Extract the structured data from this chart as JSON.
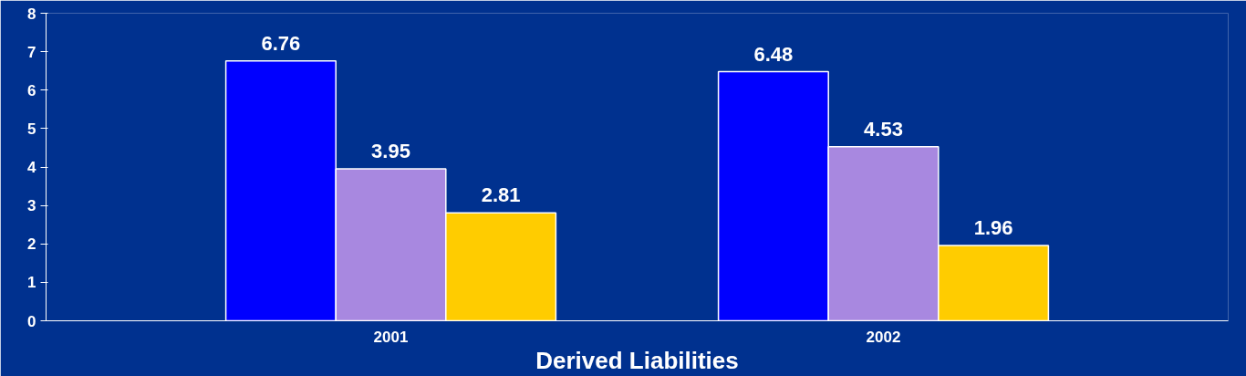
{
  "chart_data": {
    "type": "bar",
    "xlabel": "Derived Liabilities",
    "categories": [
      "2001",
      "2002"
    ],
    "series": [
      {
        "color": "#0000ff",
        "values": [
          6.76,
          6.48
        ]
      },
      {
        "color": "#a888e0",
        "values": [
          3.95,
          4.53
        ]
      },
      {
        "color": "#ffcc00",
        "values": [
          2.81,
          1.96
        ]
      }
    ],
    "ylim": [
      0,
      8
    ],
    "yticks": [
      0,
      1,
      2,
      3,
      4,
      5,
      6,
      7,
      8
    ],
    "data_labels": true,
    "grid": false
  }
}
